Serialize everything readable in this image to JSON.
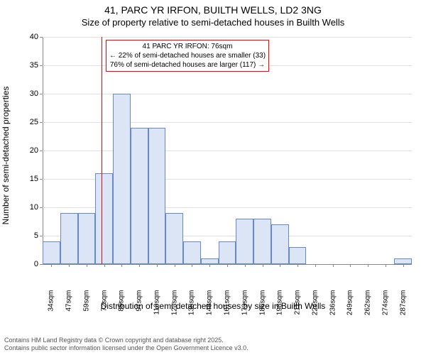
{
  "title": {
    "main": "41, PARC YR IRFON, BUILTH WELLS, LD2 3NG",
    "sub": "Size of property relative to semi-detached houses in Builth Wells"
  },
  "chart": {
    "type": "histogram",
    "ylabel": "Number of semi-detached properties",
    "xlabel": "Distribution of semi-detached houses by size in Builth Wells",
    "ylim": [
      0,
      40
    ],
    "ytick_step": 5,
    "categories": [
      "34sqm",
      "47sqm",
      "59sqm",
      "72sqm",
      "85sqm",
      "97sqm",
      "110sqm",
      "123sqm",
      "135sqm",
      "148sqm",
      "161sqm",
      "173sqm",
      "186sqm",
      "198sqm",
      "211sqm",
      "224sqm",
      "236sqm",
      "249sqm",
      "262sqm",
      "274sqm",
      "287sqm"
    ],
    "values": [
      4,
      9,
      9,
      16,
      30,
      24,
      24,
      9,
      4,
      1,
      4,
      8,
      8,
      7,
      3,
      0,
      0,
      0,
      0,
      0,
      1
    ],
    "bar_fill": "#dbe5f6",
    "bar_stroke": "#6688cc",
    "grid_color": "#e0e0e0",
    "axis_color": "#888888",
    "background_color": "#ffffff",
    "label_fontsize": 12,
    "tick_fontsize": 11,
    "xtick_fontsize": 10,
    "marker": {
      "position_index": 3.35,
      "color": "#ff0000"
    },
    "annotation": {
      "line1": "41 PARC YR IRFON: 76sqm",
      "line2": "← 22% of semi-detached houses are smaller (33)",
      "line3": "76% of semi-detached houses are larger (117) →",
      "border_color": "#ff0000",
      "background": "#ffffff",
      "fontsize": 10
    }
  },
  "footer": {
    "line1": "Contains HM Land Registry data © Crown copyright and database right 2025.",
    "line2": "Contains public sector information licensed under the Open Government Licence v3.0."
  }
}
